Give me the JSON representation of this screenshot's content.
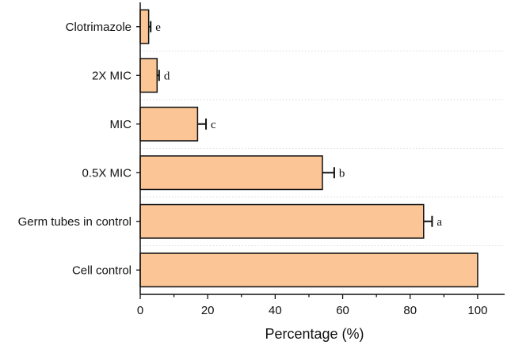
{
  "chart_data": {
    "type": "bar",
    "orientation": "horizontal",
    "categories": [
      "Clotrimazole",
      "2X MIC",
      "MIC",
      "0.5X MIC",
      "Germ tubes in control",
      "Cell control"
    ],
    "values": [
      2.5,
      5,
      17,
      54,
      84,
      100
    ],
    "errors": [
      0.6,
      0.6,
      2.5,
      3.5,
      2.5,
      null
    ],
    "significance_letters": [
      "e",
      "d",
      "c",
      "b",
      "a",
      ""
    ],
    "xlabel": "Percentage (%)",
    "ylabel": "",
    "xlim": [
      0,
      108
    ],
    "xticks": [
      0,
      20,
      40,
      60,
      80,
      100
    ],
    "grid": "dotted horizontal",
    "colors": {
      "bar_fill": "#FBC596",
      "bar_stroke": "#111111",
      "grid": "#cfcfcf"
    }
  }
}
